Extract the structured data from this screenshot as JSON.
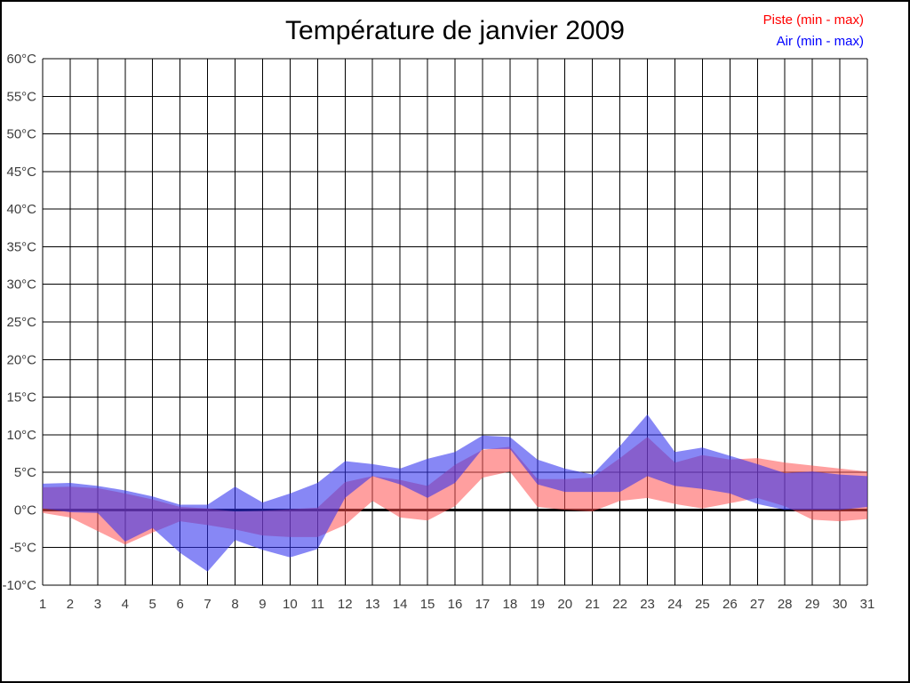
{
  "window": {
    "background": "#ffffff",
    "border_color": "#000000"
  },
  "header": {
    "title": "Température de janvier 2009"
  },
  "legend": {
    "position": "top-right",
    "items": [
      {
        "label": "Piste (min - max)",
        "color": "#ff0000"
      },
      {
        "label": "Air (min - max)",
        "color": "#0000ff"
      }
    ]
  },
  "chart_data": {
    "type": "area",
    "subtype": "min-max-range-bands",
    "title": "Température de janvier 2009",
    "xlabel": "",
    "ylabel": "°C",
    "grid": true,
    "grid_color": "#000000",
    "zero_line": {
      "value": 0,
      "color": "#000000",
      "width": 3
    },
    "xlim": [
      1,
      31
    ],
    "ylim": [
      -10,
      60
    ],
    "ytick_step": 5,
    "x": [
      1,
      2,
      3,
      4,
      5,
      6,
      7,
      8,
      9,
      10,
      11,
      12,
      13,
      14,
      15,
      16,
      17,
      18,
      19,
      20,
      21,
      22,
      23,
      24,
      25,
      26,
      27,
      28,
      29,
      30,
      31
    ],
    "x_tick_labels": [
      "1",
      "2",
      "3",
      "4",
      "5",
      "6",
      "7",
      "8",
      "9",
      "10",
      "11",
      "12",
      "13",
      "14",
      "15",
      "16",
      "17",
      "18",
      "19",
      "20",
      "21",
      "22",
      "23",
      "24",
      "25",
      "26",
      "27",
      "28",
      "29",
      "30",
      "31"
    ],
    "y_ticks": [
      {
        "value": 60,
        "label": "60°C"
      },
      {
        "value": 55,
        "label": "55°C"
      },
      {
        "value": 50,
        "label": "50°C"
      },
      {
        "value": 45,
        "label": "45°C"
      },
      {
        "value": 40,
        "label": "40°C"
      },
      {
        "value": 35,
        "label": "35°C"
      },
      {
        "value": 30,
        "label": "30°C"
      },
      {
        "value": 25,
        "label": "25°C"
      },
      {
        "value": 20,
        "label": "20°C"
      },
      {
        "value": 15,
        "label": "15°C"
      },
      {
        "value": 10,
        "label": "10°C"
      },
      {
        "value": 5,
        "label": "5°C"
      },
      {
        "value": 0,
        "label": "0°C"
      },
      {
        "value": -5,
        "label": "-5°C"
      },
      {
        "value": -10,
        "label": "-10°C"
      }
    ],
    "series": [
      {
        "name": "Piste (min - max)",
        "fill": "#ff5050",
        "fill_opacity": 0.55,
        "legend_color": "#ff0000",
        "min": [
          -0.4,
          -1.0,
          -2.8,
          -4.6,
          -3.0,
          -1.5,
          -2.0,
          -2.6,
          -3.4,
          -3.6,
          -3.6,
          -2.0,
          1.2,
          -1.0,
          -1.4,
          0.5,
          4.3,
          5.1,
          0.4,
          0.0,
          -0.2,
          1.2,
          1.6,
          0.8,
          0.2,
          0.9,
          1.6,
          0.5,
          -1.3,
          -1.5,
          -1.2
        ],
        "max": [
          3.0,
          3.1,
          2.9,
          2.2,
          1.4,
          0.4,
          0.2,
          -0.2,
          -0.1,
          0.1,
          0.3,
          3.7,
          4.5,
          4.0,
          3.2,
          6.0,
          8.0,
          8.4,
          4.1,
          4.1,
          4.3,
          6.9,
          9.7,
          6.3,
          7.3,
          6.7,
          6.9,
          6.3,
          5.9,
          5.5,
          5.1
        ]
      },
      {
        "name": "Air (min - max)",
        "fill": "#3030ee",
        "fill_opacity": 0.58,
        "legend_color": "#0000ff",
        "min": [
          0.2,
          -0.3,
          -0.4,
          -4.2,
          -2.4,
          -5.7,
          -8.2,
          -4.0,
          -5.3,
          -6.3,
          -5.2,
          1.6,
          4.5,
          3.4,
          1.6,
          3.6,
          8.1,
          8.1,
          3.4,
          2.4,
          2.4,
          2.4,
          4.5,
          3.2,
          2.8,
          2.2,
          0.8,
          0.0,
          0.0,
          0.0,
          0.4
        ],
        "max": [
          3.5,
          3.6,
          3.2,
          2.6,
          1.8,
          0.7,
          0.7,
          3.1,
          1.0,
          2.2,
          3.6,
          6.5,
          6.1,
          5.5,
          6.8,
          7.7,
          9.9,
          9.7,
          6.7,
          5.5,
          4.7,
          8.5,
          12.7,
          7.7,
          8.3,
          7.2,
          6.1,
          4.9,
          5.1,
          4.7,
          4.5
        ]
      }
    ],
    "legend_position": "top-right"
  }
}
